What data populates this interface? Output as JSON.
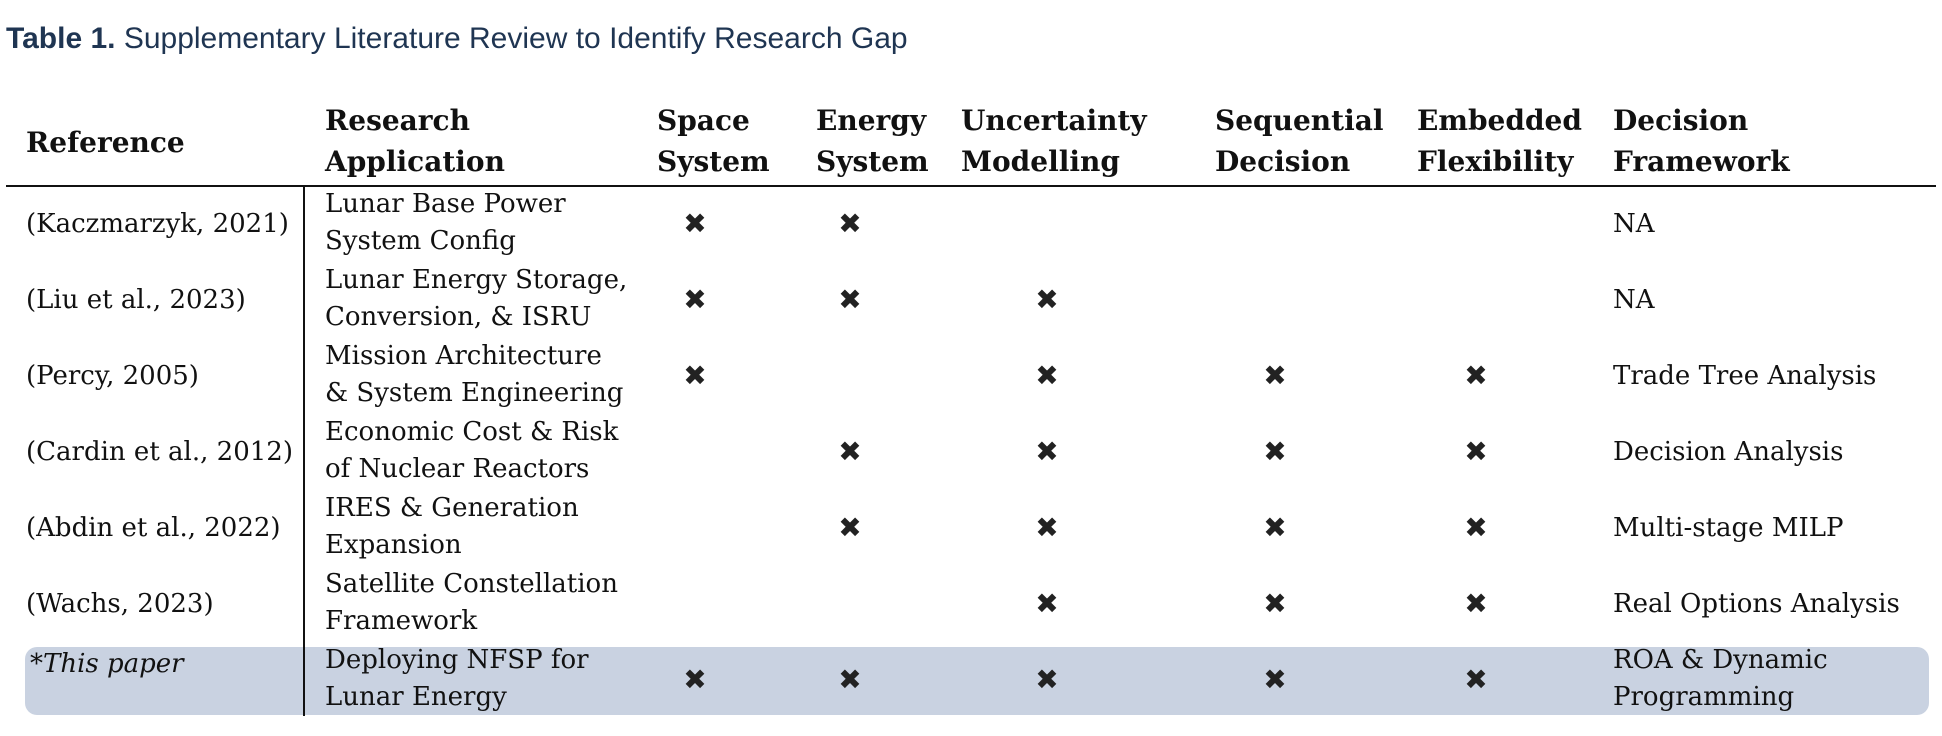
{
  "caption": {
    "label": "Table 1.",
    "text": "Supplementary Literature Review to Identify Research Gap"
  },
  "headers": {
    "reference": "Reference",
    "application": [
      "Research",
      "Application"
    ],
    "space": [
      "Space",
      "System"
    ],
    "energy": [
      "Energy",
      "System"
    ],
    "uncertainty": [
      "Uncertainty",
      "Modelling"
    ],
    "sequential": [
      "Sequential",
      "Decision"
    ],
    "flexibility": [
      "Embedded",
      "Flexibility"
    ],
    "framework": [
      "Decision",
      "Framework"
    ]
  },
  "mark_symbol": "✖",
  "rows": [
    {
      "reference": "(Kaczmarzyk, 2021)",
      "application": [
        "Lunar Base Power",
        "System Config"
      ],
      "space": true,
      "energy": true,
      "uncertainty": false,
      "sequential": false,
      "flexibility": false,
      "framework": [
        "NA"
      ]
    },
    {
      "reference": "(Liu et al., 2023)",
      "application": [
        "Lunar Energy Storage,",
        "Conversion, & ISRU"
      ],
      "space": true,
      "energy": true,
      "uncertainty": true,
      "sequential": false,
      "flexibility": false,
      "framework": [
        "NA"
      ]
    },
    {
      "reference": "(Percy, 2005)",
      "application": [
        "Mission Architecture",
        "& System Engineering"
      ],
      "space": true,
      "energy": false,
      "uncertainty": true,
      "sequential": true,
      "flexibility": true,
      "framework": [
        "Trade Tree Analysis"
      ]
    },
    {
      "reference": "(Cardin et al., 2012)",
      "application": [
        "Economic Cost & Risk",
        "of Nuclear Reactors"
      ],
      "space": false,
      "energy": true,
      "uncertainty": true,
      "sequential": true,
      "flexibility": true,
      "framework": [
        "Decision Analysis"
      ]
    },
    {
      "reference": "(Abdin et al., 2022)",
      "application": [
        "IRES & Generation",
        "Expansion"
      ],
      "space": false,
      "energy": true,
      "uncertainty": true,
      "sequential": true,
      "flexibility": true,
      "framework": [
        "Multi-stage MILP"
      ]
    },
    {
      "reference": "(Wachs, 2023)",
      "application": [
        "Satellite Constellation",
        "Framework"
      ],
      "space": false,
      "energy": false,
      "uncertainty": true,
      "sequential": true,
      "flexibility": true,
      "framework": [
        "Real Options Analysis"
      ]
    },
    {
      "reference": "*This paper",
      "reference_italic": true,
      "highlighted": true,
      "application": [
        "Deploying NFSP for",
        "Lunar Energy"
      ],
      "space": true,
      "energy": true,
      "uncertainty": true,
      "sequential": true,
      "flexibility": true,
      "framework": [
        "ROA & Dynamic",
        "Programming"
      ]
    }
  ],
  "colors": {
    "caption": "#1f3552",
    "highlight": "#c9d2e1",
    "text": "#111111"
  }
}
